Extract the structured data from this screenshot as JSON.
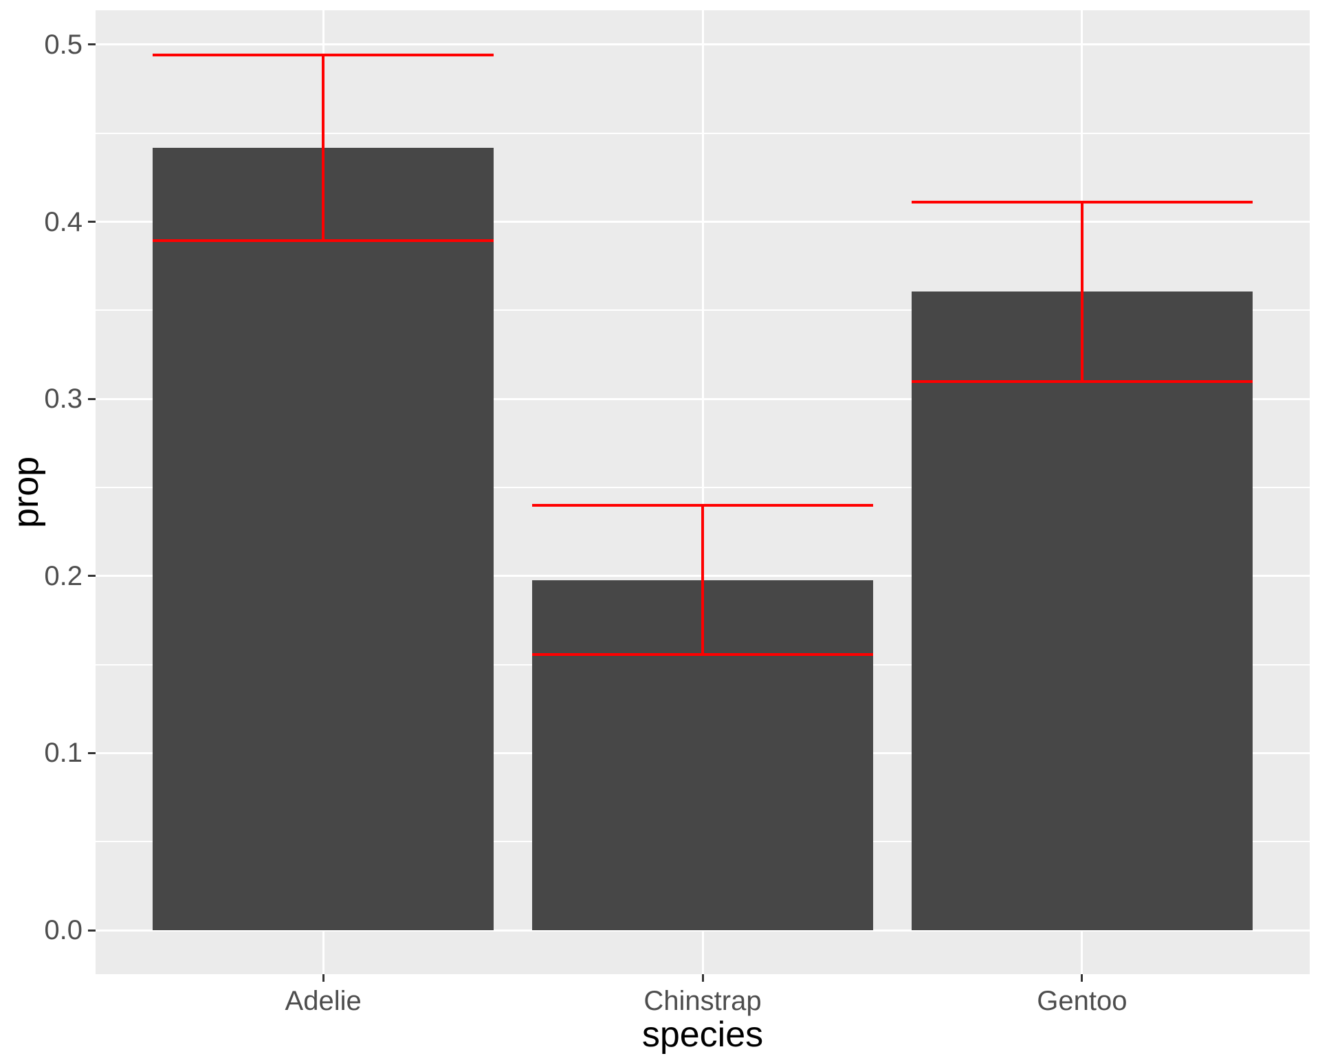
{
  "style": {
    "background": "#FFFFFF",
    "panel_background": "#EBEBEB",
    "grid_color": "#FFFFFF",
    "bar_fill": "#474747",
    "errorbar_color": "#FF0000",
    "axis_text_color": "#4D4D4D",
    "axis_title_color": "#000000",
    "tick_mark_color": "#333333"
  },
  "chart_data": {
    "type": "bar",
    "title": "",
    "xlabel": "species",
    "ylabel": "prop",
    "categories": [
      "Adelie",
      "Chinstrap",
      "Gentoo"
    ],
    "values": [
      0.4419,
      0.1977,
      0.3605
    ],
    "error_bars": {
      "lower": [
        0.3894,
        0.1556,
        0.3097
      ],
      "upper": [
        0.4943,
        0.2398,
        0.4112
      ]
    },
    "y_ticks": [
      {
        "value": 0.0,
        "label": "0.0"
      },
      {
        "value": 0.1,
        "label": "0.1"
      },
      {
        "value": 0.2,
        "label": "0.2"
      },
      {
        "value": 0.3,
        "label": "0.3"
      },
      {
        "value": 0.4,
        "label": "0.4"
      },
      {
        "value": 0.5,
        "label": "0.5"
      }
    ],
    "y_minor_ticks": [
      0.05,
      0.15,
      0.25,
      0.35,
      0.45
    ],
    "ylim": [
      -0.0248,
      0.5194
    ],
    "xlim": [
      0.4,
      3.6
    ],
    "bar_width": 0.9,
    "grid": true,
    "legend": "none"
  }
}
